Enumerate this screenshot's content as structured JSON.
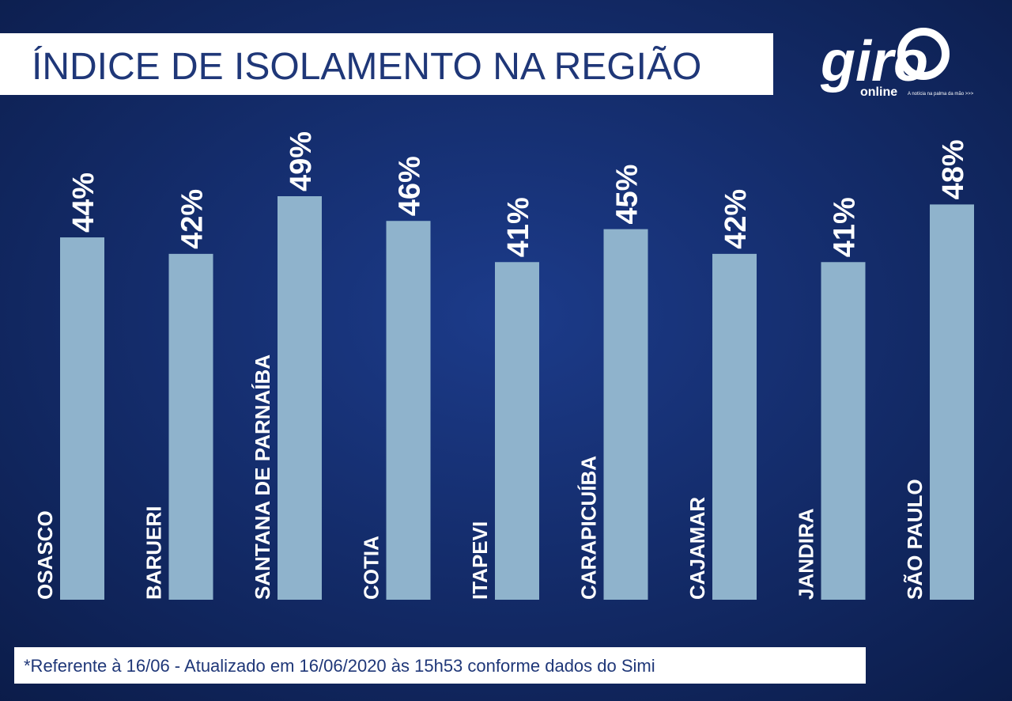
{
  "chart_data": {
    "type": "bar",
    "title": "ÍNDICE DE ISOLAMENTO NA REGIÃO",
    "categories": [
      "OSASCO",
      "BARUERI",
      "SANTANA DE PARNAÍBA",
      "COTIA",
      "ITAPEVI",
      "CARAPICUÍBA",
      "CAJAMAR",
      "JANDIRA",
      "SÃO PAULO"
    ],
    "values": [
      44,
      42,
      49,
      46,
      41,
      45,
      42,
      41,
      48
    ],
    "value_labels": [
      "44%",
      "42%",
      "49%",
      "46%",
      "41%",
      "45%",
      "42%",
      "41%",
      "48%"
    ],
    "color": "#8fb3cc",
    "footnote": "*Referente à 16/06 - Atualizado em 16/06/2020 às 15h53 conforme dados do Simi"
  },
  "logo": {
    "name": "giro",
    "sub": "online",
    "tagline": "A notícia na palma da mão >>>"
  }
}
